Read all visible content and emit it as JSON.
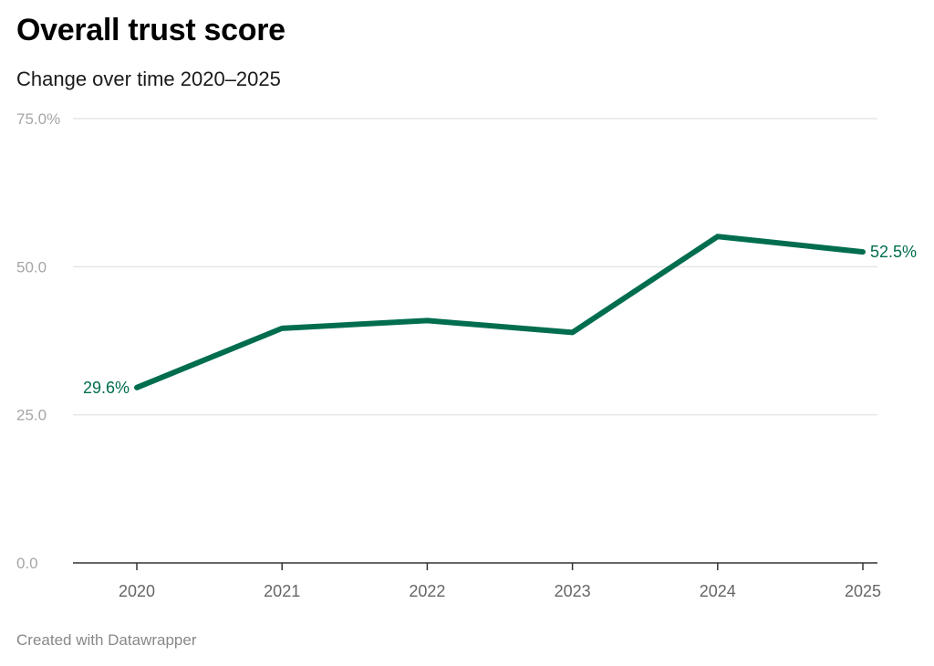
{
  "title": "Overall trust score",
  "subtitle": "Change over time 2020–2025",
  "footer": "Created with Datawrapper",
  "colors": {
    "line": "#006d4f",
    "grid": "#e6e6e6",
    "axis": "#333333"
  },
  "chart_data": {
    "type": "line",
    "title": "Overall trust score",
    "subtitle": "Change over time 2020–2025",
    "xlabel": "",
    "ylabel": "",
    "x": [
      "2020",
      "2021",
      "2022",
      "2023",
      "2024",
      "2025"
    ],
    "series": [
      {
        "values": [
          29.6,
          39.6,
          40.9,
          38.9,
          55.1,
          52.5
        ]
      }
    ],
    "ylim": [
      0,
      75
    ],
    "yticks": [
      0,
      25,
      50,
      75
    ],
    "ytick_labels": [
      "0.0",
      "25.0",
      "50.0",
      "75.0%"
    ],
    "data_labels": [
      {
        "index": 0,
        "text": "29.6%"
      },
      {
        "index": 5,
        "text": "52.5%"
      }
    ],
    "grid": true,
    "legend": "none"
  }
}
